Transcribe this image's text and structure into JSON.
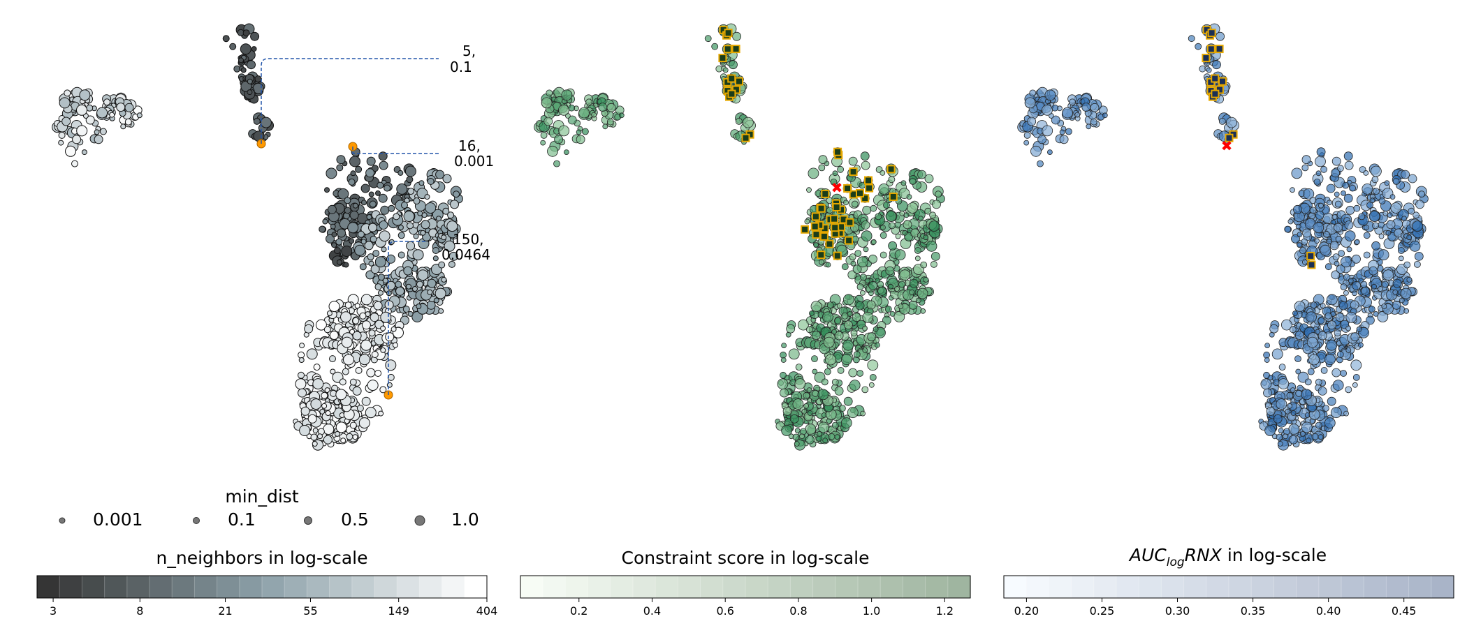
{
  "chart_data": [
    {
      "type": "scatter",
      "panel": "n_neighbors",
      "colormap": "bone",
      "colors": {
        "dark": "#353535",
        "mid": "#8ca0a8",
        "light": "#ffffff",
        "highlight": "#ff9900",
        "guide": "#2255aa"
      },
      "clusters": [
        {
          "name": "top_stem",
          "n": 70,
          "shade": [
            0.05,
            0.3
          ]
        },
        {
          "name": "left_blob",
          "n": 110,
          "shade": [
            0.62,
            0.98
          ]
        },
        {
          "name": "upper_mass",
          "n": 160,
          "shade": [
            0.15,
            0.45
          ]
        },
        {
          "name": "right_mass",
          "n": 260,
          "shade": [
            0.45,
            0.75
          ]
        },
        {
          "name": "lower_mass",
          "n": 360,
          "shade": [
            0.8,
            1.0
          ]
        },
        {
          "name": "side_bit",
          "n": 10,
          "shade": [
            0.05,
            0.15
          ]
        }
      ],
      "annotations": [
        {
          "line1": "5,",
          "line2": "0.1"
        },
        {
          "line1": "16,",
          "line2": "0.001"
        },
        {
          "line1": "150,",
          "line2": "0.0464"
        }
      ],
      "size_legend": {
        "title": "min_dist",
        "entries": [
          "0.001",
          "0.1",
          "0.5",
          "1.0"
        ]
      },
      "colorbar": {
        "title": "n_neighbors in log-scale",
        "scale": "log",
        "range": [
          2.5,
          404
        ],
        "ticks": [
          "3",
          "8",
          "21",
          "55",
          "149",
          "404"
        ],
        "tick_values": [
          3,
          8,
          21,
          55,
          149,
          404
        ],
        "start_color": "#353535",
        "end_color": "#ffffff",
        "mid_color": "#8ca0a8"
      }
    },
    {
      "type": "scatter",
      "panel": "constraint",
      "colormap": "Greens",
      "colors": {
        "point": "#2e8b57",
        "point_light": "#c7e9c0",
        "highlight_edge": "#e6a800",
        "highlight_fill": "#1a3d1a",
        "best": "#ff0000"
      },
      "colorbar": {
        "title": "Constraint score in log-scale",
        "range": [
          0.04,
          1.27
        ],
        "ticks": [
          "0.2",
          "0.4",
          "0.6",
          "0.8",
          "1.0",
          "1.2"
        ],
        "tick_values": [
          0.2,
          0.4,
          0.6,
          0.8,
          1.0,
          1.2
        ],
        "start_color": "#f7fcf5",
        "end_color": "#9fb5a0"
      }
    },
    {
      "type": "scatter",
      "panel": "auc",
      "colormap": "Blues",
      "colors": {
        "point": "#2c6bb0",
        "point_light": "#c6dbef",
        "highlight_edge": "#e6a800",
        "highlight_fill": "#1a2f55",
        "best": "#ff0000"
      },
      "colorbar": {
        "title_main": "AUC",
        "title_sub": "log",
        "title_rest": "RNX",
        "title_suffix": " in log-scale",
        "range": [
          0.185,
          0.483
        ],
        "ticks": [
          "0.20",
          "0.25",
          "0.30",
          "0.35",
          "0.40",
          "0.45"
        ],
        "tick_values": [
          0.2,
          0.25,
          0.3,
          0.35,
          0.4,
          0.45
        ],
        "start_color": "#f7fbff",
        "end_color": "#a9b4c8"
      }
    }
  ]
}
